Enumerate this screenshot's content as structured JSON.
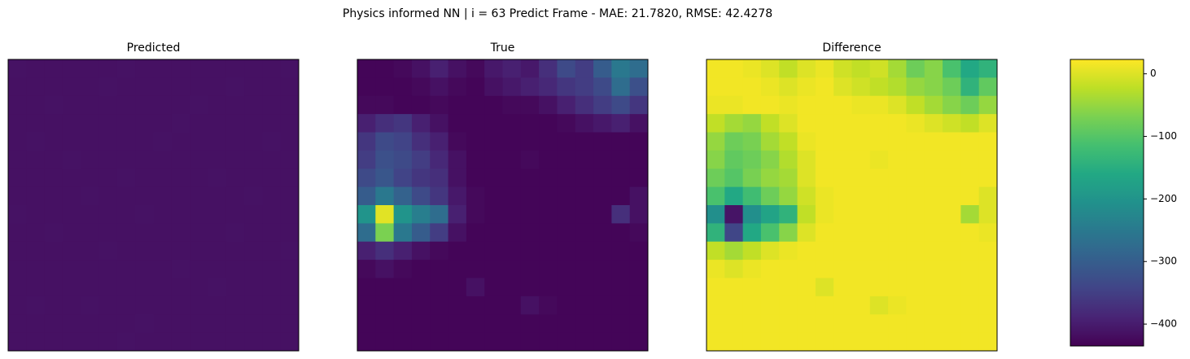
{
  "title": "Physics informed NN | i = 63 Predict Frame - MAE: 21.7820, RMSE: 42.4278",
  "chart_data": [
    {
      "type": "heatmap",
      "title": "Predicted",
      "colormap": "viridis",
      "clim": [
        0,
        450
      ],
      "values": [
        [
          22,
          20,
          20,
          21,
          20,
          20,
          22,
          20,
          20,
          21,
          20,
          20,
          20,
          21,
          20,
          22
        ],
        [
          20,
          21,
          20,
          20,
          20,
          22,
          20,
          20,
          21,
          20,
          20,
          20,
          22,
          20,
          20,
          20
        ],
        [
          21,
          20,
          22,
          20,
          21,
          20,
          20,
          21,
          20,
          20,
          22,
          20,
          20,
          20,
          21,
          20
        ],
        [
          20,
          20,
          20,
          21,
          20,
          20,
          21,
          20,
          20,
          22,
          20,
          20,
          21,
          20,
          20,
          20
        ],
        [
          20,
          22,
          20,
          20,
          20,
          21,
          20,
          20,
          22,
          20,
          20,
          21,
          20,
          20,
          22,
          20
        ],
        [
          21,
          20,
          20,
          22,
          20,
          20,
          20,
          21,
          20,
          20,
          20,
          20,
          20,
          21,
          20,
          20
        ],
        [
          20,
          20,
          21,
          20,
          20,
          20,
          22,
          20,
          20,
          21,
          20,
          22,
          20,
          20,
          20,
          21
        ],
        [
          20,
          21,
          20,
          20,
          22,
          20,
          20,
          20,
          21,
          20,
          20,
          20,
          20,
          22,
          20,
          20
        ],
        [
          22,
          20,
          20,
          20,
          20,
          21,
          20,
          22,
          20,
          20,
          21,
          20,
          20,
          20,
          20,
          20
        ],
        [
          20,
          20,
          22,
          21,
          20,
          20,
          20,
          20,
          20,
          20,
          20,
          21,
          22,
          20,
          21,
          20
        ],
        [
          20,
          21,
          20,
          20,
          20,
          22,
          20,
          20,
          21,
          20,
          20,
          20,
          20,
          20,
          20,
          22
        ],
        [
          21,
          20,
          20,
          20,
          21,
          20,
          20,
          21,
          20,
          22,
          20,
          20,
          21,
          20,
          20,
          20
        ],
        [
          20,
          20,
          21,
          20,
          20,
          20,
          21,
          20,
          20,
          20,
          20,
          22,
          20,
          20,
          21,
          20
        ],
        [
          20,
          22,
          20,
          20,
          22,
          20,
          20,
          20,
          21,
          20,
          21,
          20,
          20,
          20,
          20,
          20
        ],
        [
          21,
          20,
          20,
          21,
          20,
          20,
          20,
          22,
          20,
          20,
          20,
          20,
          21,
          20,
          20,
          21
        ],
        [
          20,
          20,
          20,
          20,
          20,
          21,
          22,
          20,
          20,
          21,
          20,
          20,
          20,
          20,
          21,
          20
        ]
      ]
    },
    {
      "type": "heatmap",
      "title": "True",
      "colormap": "viridis",
      "clim": [
        0,
        450
      ],
      "values": [
        [
          5,
          5,
          10,
          20,
          40,
          20,
          10,
          30,
          40,
          30,
          60,
          100,
          80,
          130,
          180,
          160
        ],
        [
          5,
          5,
          5,
          10,
          20,
          10,
          5,
          20,
          30,
          40,
          50,
          70,
          80,
          100,
          160,
          110
        ],
        [
          10,
          10,
          5,
          5,
          10,
          5,
          5,
          5,
          10,
          10,
          20,
          40,
          60,
          80,
          100,
          70
        ],
        [
          40,
          60,
          70,
          40,
          20,
          5,
          5,
          5,
          5,
          5,
          5,
          10,
          20,
          30,
          40,
          20
        ],
        [
          70,
          100,
          90,
          60,
          40,
          10,
          5,
          5,
          5,
          5,
          5,
          5,
          5,
          5,
          5,
          5
        ],
        [
          80,
          110,
          100,
          80,
          50,
          20,
          5,
          5,
          5,
          10,
          5,
          5,
          5,
          5,
          5,
          5
        ],
        [
          100,
          120,
          90,
          70,
          60,
          20,
          5,
          5,
          5,
          5,
          5,
          5,
          5,
          5,
          5,
          5
        ],
        [
          130,
          180,
          140,
          100,
          70,
          30,
          10,
          5,
          5,
          5,
          5,
          5,
          5,
          5,
          5,
          20
        ],
        [
          230,
          430,
          230,
          190,
          160,
          40,
          10,
          5,
          5,
          5,
          5,
          5,
          5,
          5,
          60,
          20
        ],
        [
          160,
          360,
          180,
          130,
          80,
          20,
          5,
          5,
          5,
          5,
          5,
          5,
          5,
          5,
          5,
          10
        ],
        [
          40,
          60,
          40,
          20,
          10,
          5,
          5,
          5,
          5,
          5,
          5,
          5,
          5,
          5,
          5,
          5
        ],
        [
          10,
          20,
          10,
          5,
          5,
          5,
          5,
          5,
          5,
          5,
          5,
          5,
          5,
          5,
          5,
          5
        ],
        [
          5,
          5,
          5,
          5,
          5,
          5,
          20,
          5,
          5,
          5,
          5,
          5,
          5,
          5,
          5,
          5
        ],
        [
          5,
          5,
          5,
          5,
          5,
          5,
          5,
          5,
          5,
          20,
          10,
          5,
          5,
          5,
          5,
          5
        ],
        [
          5,
          5,
          5,
          5,
          5,
          5,
          5,
          5,
          5,
          5,
          5,
          5,
          5,
          5,
          5,
          5
        ],
        [
          5,
          5,
          5,
          5,
          5,
          5,
          5,
          5,
          5,
          5,
          5,
          5,
          5,
          5,
          5,
          5
        ]
      ]
    },
    {
      "type": "heatmap",
      "title": "Difference",
      "colormap": "viridis",
      "clim": [
        -435,
        23
      ],
      "colorbar": true,
      "ylim": [
        -435,
        23
      ],
      "yticks": [
        0,
        {
          "value": -100,
          "label": "−100"
        },
        {
          "value": -200,
          "label": "−200"
        },
        {
          "value": -300,
          "label": "−300"
        },
        {
          "value": -400,
          "label": "−400"
        }
      ],
      "values": [
        [
          15,
          15,
          10,
          0,
          -20,
          0,
          10,
          -10,
          -20,
          -10,
          -40,
          -80,
          -60,
          -110,
          -160,
          -140
        ],
        [
          15,
          15,
          15,
          10,
          0,
          10,
          15,
          0,
          -10,
          -20,
          -30,
          -50,
          -60,
          -80,
          -140,
          -90
        ],
        [
          10,
          10,
          15,
          15,
          10,
          15,
          15,
          15,
          10,
          10,
          0,
          -20,
          -40,
          -60,
          -80,
          -50
        ],
        [
          -20,
          -40,
          -50,
          -20,
          0,
          15,
          15,
          15,
          15,
          15,
          15,
          10,
          0,
          -10,
          -20,
          0
        ],
        [
          -50,
          -80,
          -70,
          -40,
          -20,
          10,
          15,
          15,
          15,
          15,
          15,
          15,
          15,
          15,
          15,
          15
        ],
        [
          -60,
          -90,
          -80,
          -60,
          -30,
          0,
          15,
          15,
          15,
          10,
          15,
          15,
          15,
          15,
          15,
          15
        ],
        [
          -80,
          -100,
          -70,
          -50,
          -40,
          0,
          15,
          15,
          15,
          15,
          15,
          15,
          15,
          15,
          15,
          15
        ],
        [
          -110,
          -160,
          -120,
          -80,
          -50,
          -10,
          10,
          15,
          15,
          15,
          15,
          15,
          15,
          15,
          15,
          0
        ],
        [
          -210,
          -410,
          -210,
          -170,
          -140,
          -20,
          10,
          15,
          15,
          15,
          15,
          15,
          15,
          15,
          -40,
          0
        ],
        [
          -140,
          -340,
          -160,
          -110,
          -60,
          0,
          15,
          15,
          15,
          15,
          15,
          15,
          15,
          15,
          15,
          10
        ],
        [
          -20,
          -40,
          -20,
          0,
          10,
          15,
          15,
          15,
          15,
          15,
          15,
          15,
          15,
          15,
          15,
          15
        ],
        [
          10,
          0,
          10,
          15,
          15,
          15,
          15,
          15,
          15,
          15,
          15,
          15,
          15,
          15,
          15,
          15
        ],
        [
          15,
          15,
          15,
          15,
          15,
          15,
          0,
          15,
          15,
          15,
          15,
          15,
          15,
          15,
          15,
          15
        ],
        [
          15,
          15,
          15,
          15,
          15,
          15,
          15,
          15,
          15,
          0,
          10,
          15,
          15,
          15,
          15,
          15
        ],
        [
          15,
          15,
          15,
          15,
          15,
          15,
          15,
          15,
          15,
          15,
          15,
          15,
          15,
          15,
          15,
          15
        ],
        [
          15,
          15,
          15,
          15,
          15,
          15,
          15,
          15,
          15,
          15,
          15,
          15,
          15,
          15,
          15,
          15
        ]
      ]
    }
  ]
}
